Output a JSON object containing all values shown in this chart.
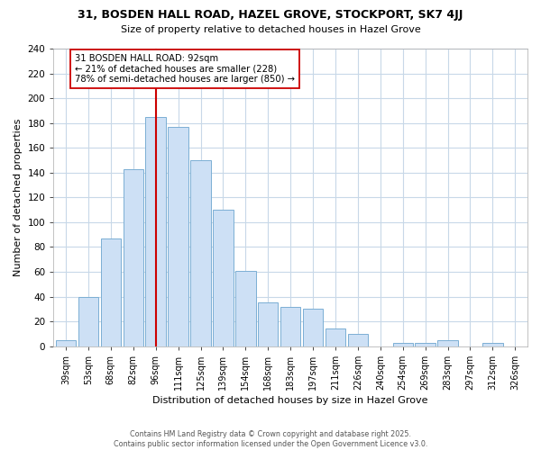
{
  "title": "31, BOSDEN HALL ROAD, HAZEL GROVE, STOCKPORT, SK7 4JJ",
  "subtitle": "Size of property relative to detached houses in Hazel Grove",
  "xlabel": "Distribution of detached houses by size in Hazel Grove",
  "ylabel": "Number of detached properties",
  "bar_labels": [
    "39sqm",
    "53sqm",
    "68sqm",
    "82sqm",
    "96sqm",
    "111sqm",
    "125sqm",
    "139sqm",
    "154sqm",
    "168sqm",
    "183sqm",
    "197sqm",
    "211sqm",
    "226sqm",
    "240sqm",
    "254sqm",
    "269sqm",
    "283sqm",
    "297sqm",
    "312sqm",
    "326sqm"
  ],
  "bar_values": [
    5,
    40,
    87,
    143,
    185,
    177,
    150,
    110,
    61,
    35,
    32,
    30,
    14,
    10,
    0,
    3,
    3,
    5,
    0,
    3,
    0
  ],
  "bar_color": "#cde0f5",
  "bar_edge_color": "#7bafd4",
  "vline_x_index": 4,
  "vline_color": "#cc0000",
  "annotation_text": "31 BOSDEN HALL ROAD: 92sqm\n← 21% of detached houses are smaller (228)\n78% of semi-detached houses are larger (850) →",
  "annotation_box_color": "#ffffff",
  "annotation_box_edge_color": "#cc0000",
  "ylim": [
    0,
    240
  ],
  "yticks": [
    0,
    20,
    40,
    60,
    80,
    100,
    120,
    140,
    160,
    180,
    200,
    220,
    240
  ],
  "footer_line1": "Contains HM Land Registry data © Crown copyright and database right 2025.",
  "footer_line2": "Contains public sector information licensed under the Open Government Licence v3.0.",
  "background_color": "#ffffff",
  "grid_color": "#c8d8e8",
  "figwidth": 6.0,
  "figheight": 5.0,
  "dpi": 100
}
